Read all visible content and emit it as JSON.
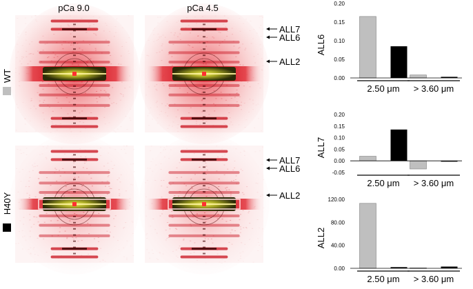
{
  "panels": {
    "column_labels": [
      "pCa 9.0",
      "pCa 4.5"
    ],
    "row_labels": [
      "WT",
      "H40Y"
    ],
    "row_colors": [
      "#bfbfbf",
      "#000000"
    ],
    "top_arrows": [
      "ALL7",
      "ALL6",
      "ALL2"
    ],
    "bottom_arrows": [
      "ALL7",
      "ALL6",
      "ALL2"
    ]
  },
  "chart_data": [
    {
      "type": "bar",
      "ylabel": "ALL6",
      "categories": [
        "2.50 μm",
        "> 3.60 μm"
      ],
      "series": [
        {
          "values": [
            0.165,
            0.008
          ],
          "color": "#bfbfbf"
        },
        {
          "values": [
            0.085,
            0.003
          ],
          "color": "#000000"
        }
      ],
      "ylim": [
        0,
        0.2
      ],
      "ticks": [
        "0.00",
        "0.05",
        "0.10",
        "0.15",
        "0.20"
      ],
      "tick_values": [
        0,
        0.05,
        0.1,
        0.15,
        0.2
      ]
    },
    {
      "type": "bar",
      "ylabel": "ALL7",
      "categories": [
        "2.50 μm",
        "> 3.60 μm"
      ],
      "series": [
        {
          "values": [
            0.02,
            -0.035
          ],
          "color": "#bfbfbf"
        },
        {
          "values": [
            0.135,
            -0.003
          ],
          "color": "#000000"
        }
      ],
      "ylim": [
        -0.05,
        0.2
      ],
      "ticks": [
        "-0.05",
        "0.00",
        "0.05",
        "0.10",
        "0.15",
        "0.20"
      ],
      "tick_values": [
        -0.05,
        0,
        0.05,
        0.1,
        0.15,
        0.2
      ]
    },
    {
      "type": "bar",
      "ylabel": "ALL2",
      "categories": [
        "2.50 μm",
        "> 3.60 μm"
      ],
      "series": [
        {
          "values": [
            113,
            1
          ],
          "color": "#bfbfbf"
        },
        {
          "values": [
            2,
            3
          ],
          "color": "#000000"
        }
      ],
      "ylim": [
        0,
        120
      ],
      "ticks": [
        "0.00",
        "40.00",
        "80.00",
        "120.00"
      ],
      "tick_values": [
        0,
        40,
        80,
        120
      ]
    }
  ]
}
